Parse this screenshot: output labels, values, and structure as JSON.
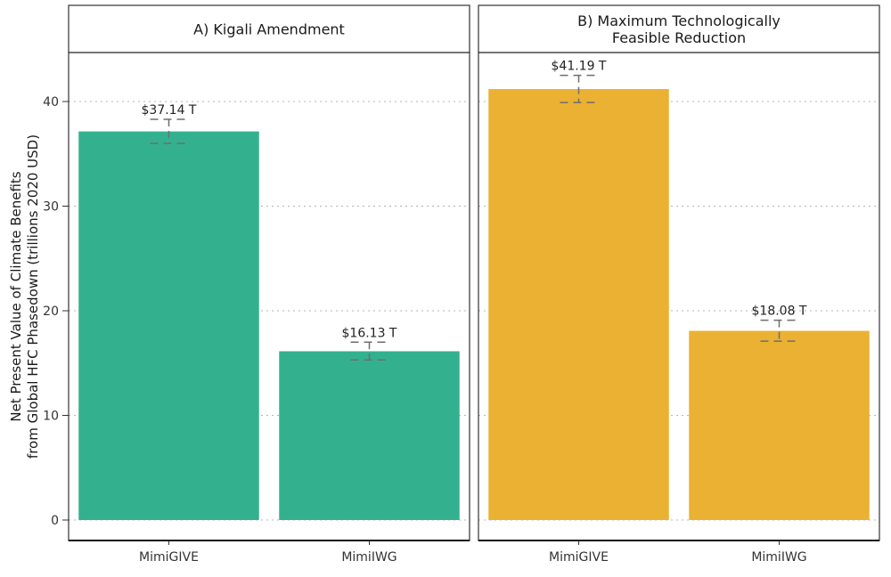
{
  "chart_data": {
    "type": "bar",
    "ylabel_lines": [
      "Net Present Value of Climate Benefits",
      "from Global HFC Phasedown (trillions 2020 USD)"
    ],
    "ylim": [
      0,
      44.5
    ],
    "yticks": [
      0,
      10,
      20,
      30,
      40
    ],
    "grid": "horizontal dotted",
    "panels": [
      {
        "title_lines": [
          "A) Kigali Amendment"
        ],
        "color": "#33b18f",
        "categories": [
          "MimiGIVE",
          "MimiIWG"
        ],
        "values": [
          37.14,
          16.13
        ],
        "error_low": [
          36.0,
          15.3
        ],
        "error_high": [
          38.3,
          17.0
        ],
        "labels": [
          "$37.14 T",
          "$16.13 T"
        ]
      },
      {
        "title_lines": [
          "B) Maximum Technologically",
          "Feasible Reduction"
        ],
        "color": "#ebb133",
        "categories": [
          "MimiGIVE",
          "MimiIWG"
        ],
        "values": [
          41.19,
          18.08
        ],
        "error_low": [
          39.9,
          17.1
        ],
        "error_high": [
          42.5,
          19.1
        ],
        "labels": [
          "$41.19 T",
          "$18.08 T"
        ]
      }
    ]
  }
}
